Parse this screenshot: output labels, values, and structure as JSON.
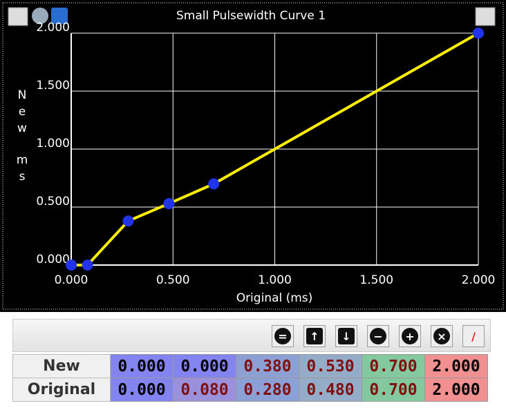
{
  "chart_data": {
    "type": "line",
    "title": "Small Pulsewidth Curve 1",
    "xlabel": "Original (ms)",
    "ylabel": [
      "New",
      "ms"
    ],
    "x": [
      0,
      0.08,
      0.28,
      0.48,
      0.7,
      2.0
    ],
    "series": [
      {
        "name": "New",
        "color": "#ffee00",
        "marker_color": "#2233ee",
        "values": [
          0,
          0,
          0.38,
          0.53,
          0.7,
          2.0
        ]
      }
    ],
    "xlim": [
      0,
      2
    ],
    "ylim": [
      0,
      2
    ],
    "xticks": [
      {
        "value": 0,
        "label": "0.000"
      },
      {
        "value": 0.5,
        "label": "0.500"
      },
      {
        "value": 1,
        "label": "1.000"
      },
      {
        "value": 1.5,
        "label": "1.500"
      },
      {
        "value": 2,
        "label": "2.000"
      }
    ],
    "yticks": [
      {
        "value": 0,
        "label": "0.000"
      },
      {
        "value": 0.5,
        "label": "0.500"
      },
      {
        "value": 1,
        "label": "1.000"
      },
      {
        "value": 1.5,
        "label": "1.500"
      },
      {
        "value": 2,
        "label": "2.000"
      }
    ],
    "grid": true
  },
  "table": {
    "rows": [
      {
        "header": "New",
        "cells": [
          "0.000",
          "0.000",
          "0.380",
          "0.530",
          "0.700",
          "2.000"
        ]
      },
      {
        "header": "Original",
        "cells": [
          "0.000",
          "0.080",
          "0.280",
          "0.480",
          "0.700",
          "2.000"
        ]
      }
    ]
  }
}
